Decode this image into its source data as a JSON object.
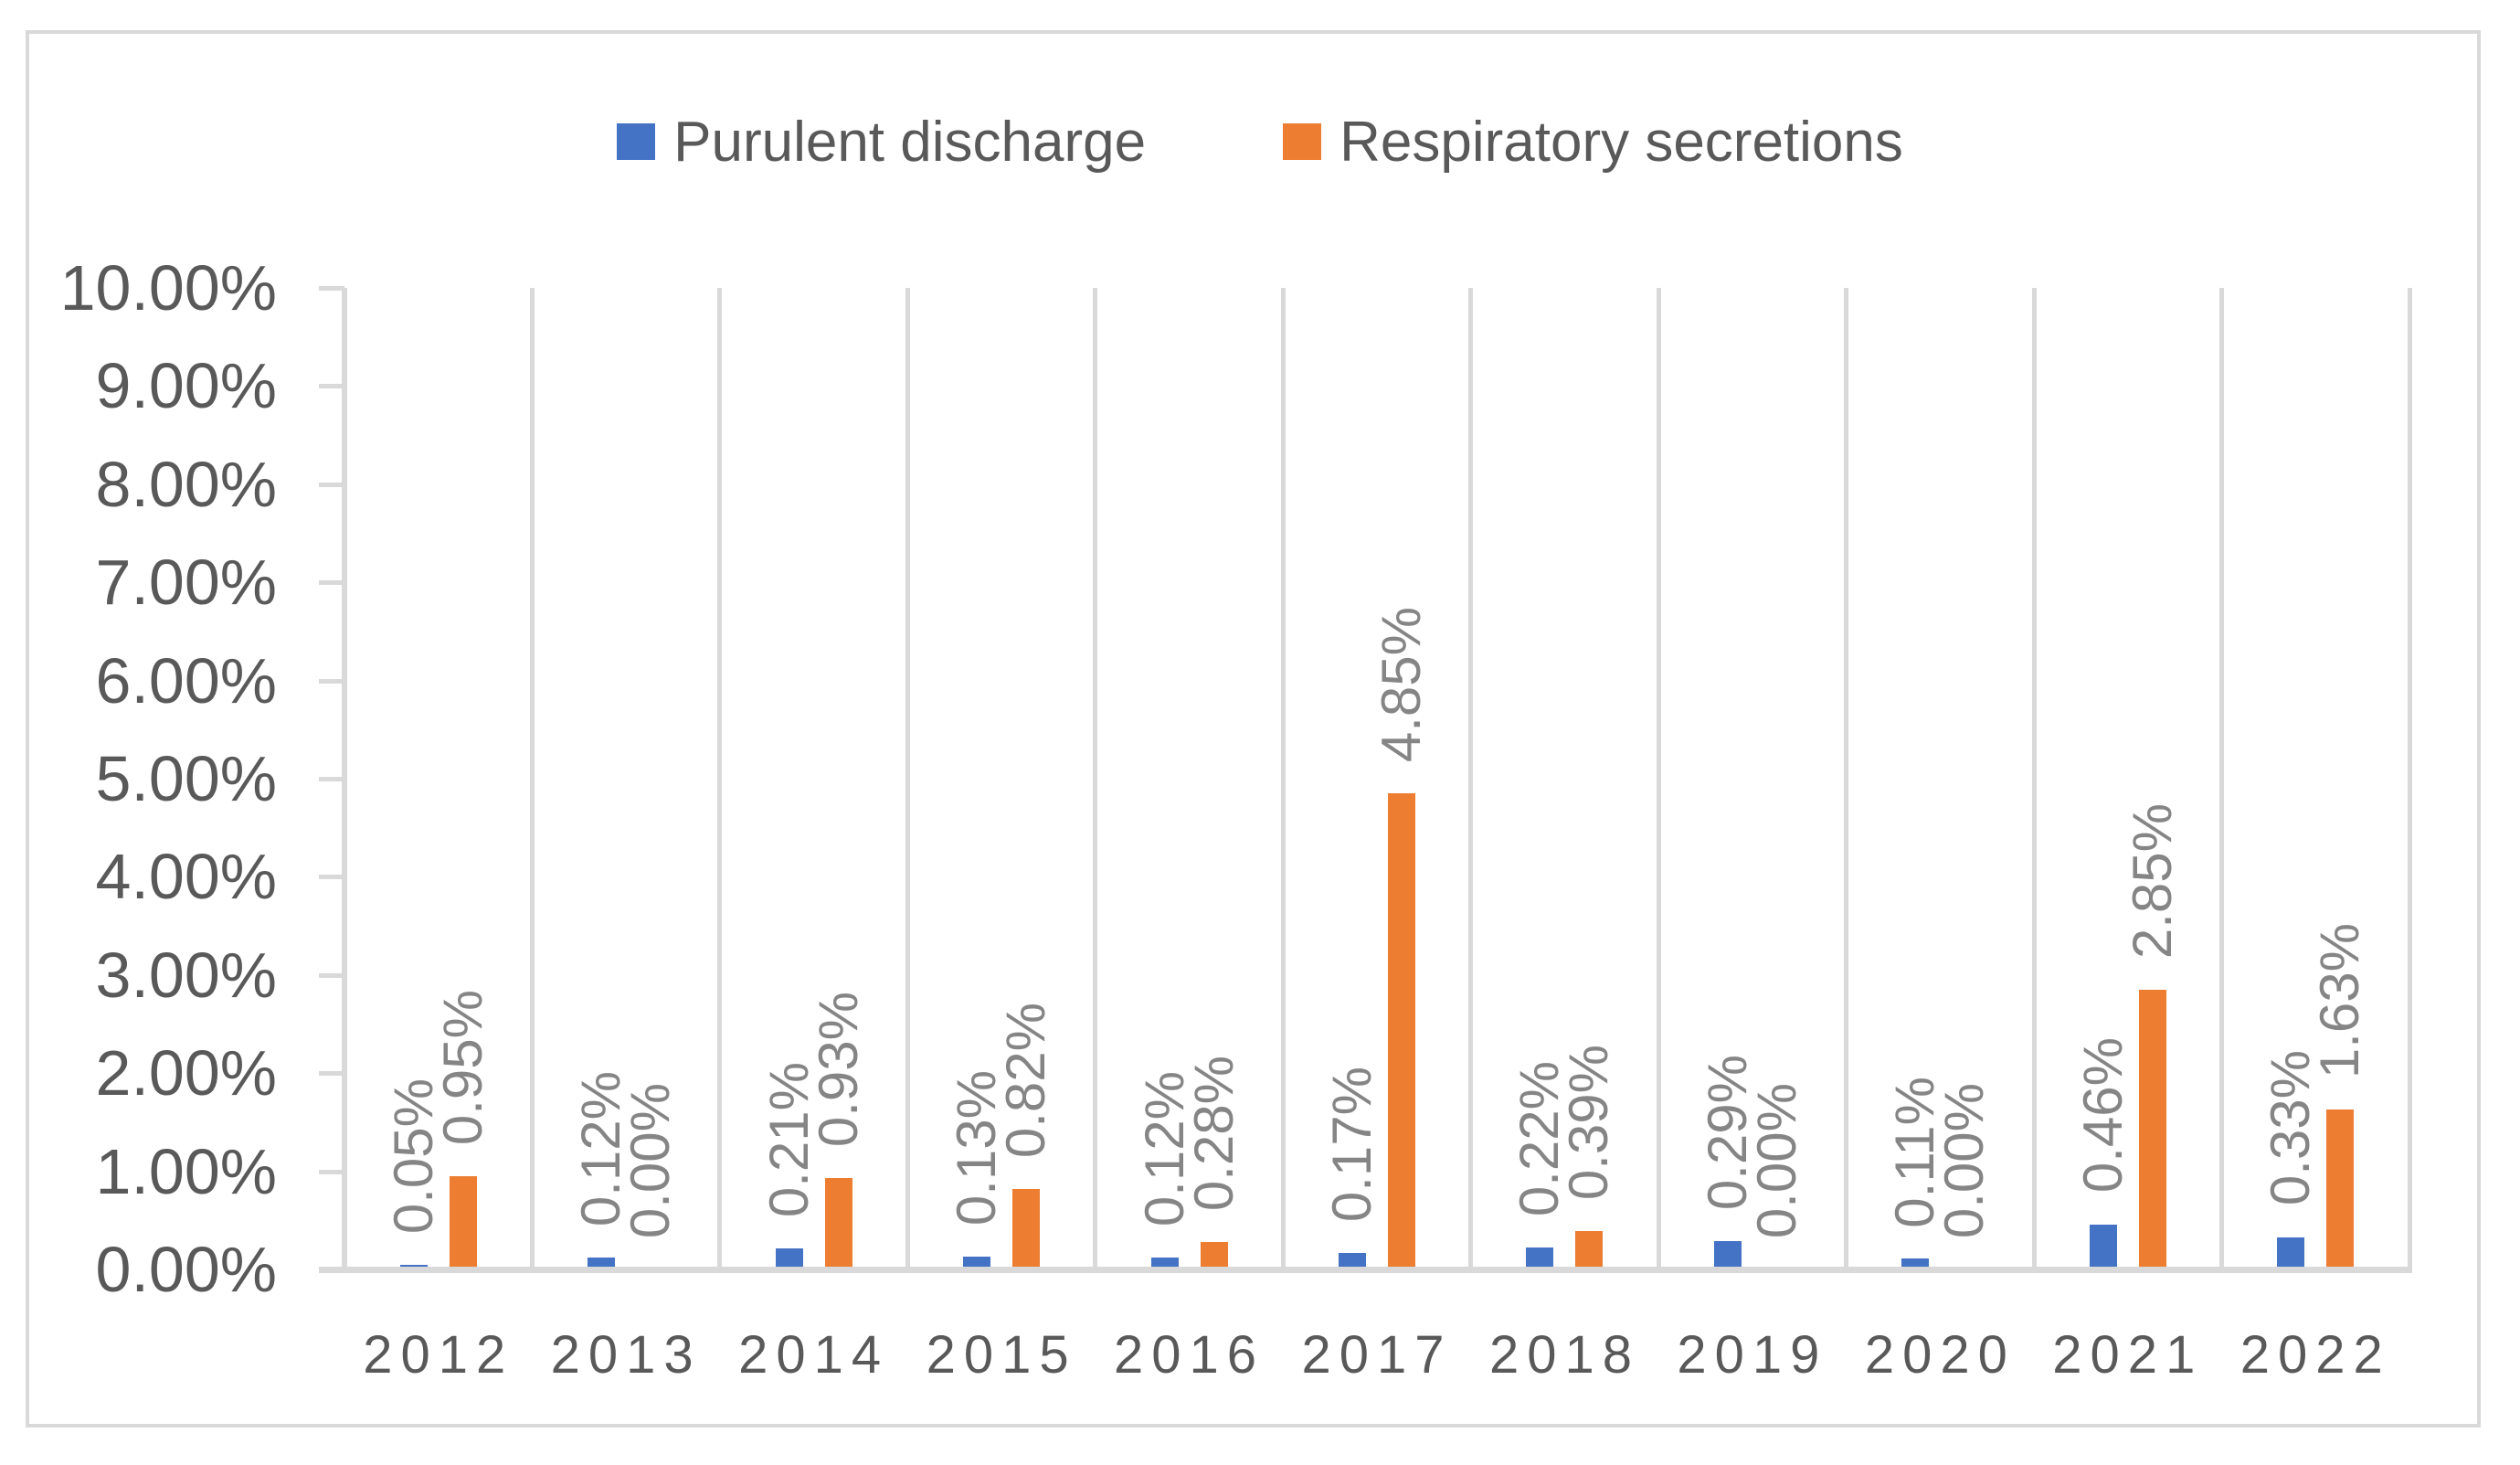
{
  "chart_data": {
    "type": "bar",
    "title": "",
    "categories": [
      "2012",
      "2013",
      "2014",
      "2015",
      "2016",
      "2017",
      "2018",
      "2019",
      "2020",
      "2021",
      "2022"
    ],
    "series": [
      {
        "name": "Purulent discharge",
        "color": "#4472C4",
        "values": [
          0.05,
          0.12,
          0.21,
          0.13,
          0.12,
          0.17,
          0.22,
          0.29,
          0.11,
          0.46,
          0.33
        ],
        "labels": [
          "0.05%",
          "0.12%",
          "0.21%",
          "0.13%",
          "0.12%",
          "0.17%",
          "0.22%",
          "0.29%",
          "0.11%",
          "0.46%",
          "0.33%"
        ]
      },
      {
        "name": "Respiratory secretions",
        "color": "#ED7D31",
        "values": [
          0.95,
          0.0,
          0.93,
          0.82,
          0.28,
          4.85,
          0.39,
          0.0,
          0.0,
          2.85,
          1.63
        ],
        "labels": [
          "0.95%",
          "0.00%",
          "0.93%",
          "0.82%",
          "0.28%",
          "4.85%",
          "0.39%",
          "0.00%",
          "0.00%",
          "2.85%",
          "1.63%"
        ]
      }
    ],
    "y_axis": {
      "min": 0,
      "max": 10,
      "step": 1,
      "tick_labels": [
        "0.00%",
        "1.00%",
        "2.00%",
        "3.00%",
        "4.00%",
        "5.00%",
        "6.00%",
        "7.00%",
        "8.00%",
        "9.00%",
        "10.00%"
      ]
    },
    "x_axis": {
      "label": ""
    },
    "legend_position": "top",
    "gridlines": "vertical-category-separators",
    "data_label_rotation": "rotated-90-ccw",
    "colors": {
      "grid": "#D9D9D9",
      "axis_text": "#595959",
      "data_label_text": "#858585"
    }
  }
}
